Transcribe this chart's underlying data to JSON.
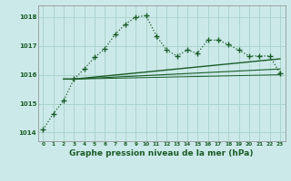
{
  "bg_color": "#cce9e9",
  "grid_color": "#aad4cc",
  "line_color": "#1a5c28",
  "title": "Graphe pression niveau de la mer (hPa)",
  "xlim": [
    -0.5,
    23.5
  ],
  "ylim": [
    1013.7,
    1018.4
  ],
  "yticks": [
    1014,
    1015,
    1016,
    1017,
    1018
  ],
  "xticks": [
    0,
    1,
    2,
    3,
    4,
    5,
    6,
    7,
    8,
    9,
    10,
    11,
    12,
    13,
    14,
    15,
    16,
    17,
    18,
    19,
    20,
    21,
    22,
    23
  ],
  "series1_x": [
    0,
    1,
    2,
    3,
    4,
    5,
    6,
    7,
    8,
    9,
    10,
    11,
    12,
    13,
    14,
    15,
    16,
    17,
    18,
    19,
    20,
    21,
    22,
    23
  ],
  "series1_y": [
    1014.1,
    1014.65,
    1015.1,
    1015.85,
    1016.2,
    1016.6,
    1016.9,
    1017.4,
    1017.75,
    1018.0,
    1018.05,
    1017.35,
    1016.85,
    1016.65,
    1016.85,
    1016.75,
    1017.2,
    1017.2,
    1017.05,
    1016.85,
    1016.65,
    1016.65,
    1016.65,
    1016.05
  ],
  "series2_x": [
    2,
    3,
    23
  ],
  "series2_y": [
    1015.85,
    1015.85,
    1016.55
  ],
  "series3_x": [
    2,
    3,
    23
  ],
  "series3_y": [
    1015.85,
    1015.85,
    1016.2
  ],
  "series4_x": [
    2,
    3,
    23
  ],
  "series4_y": [
    1015.85,
    1015.85,
    1016.0
  ]
}
